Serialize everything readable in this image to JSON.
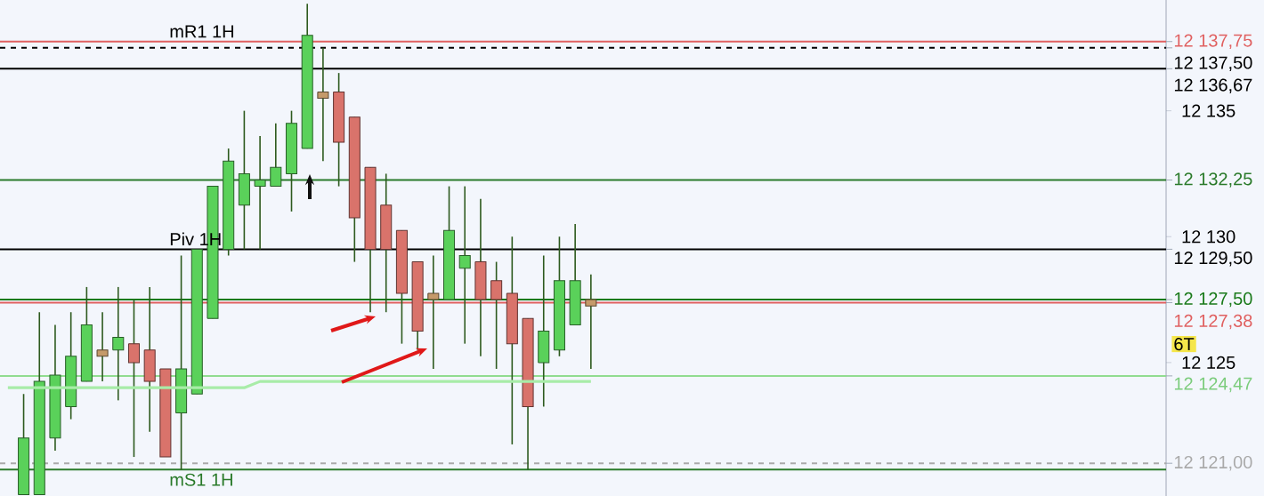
{
  "chart_data": {
    "type": "candlestick",
    "categories": [
      null,
      null,
      null,
      null,
      null,
      null,
      null,
      null,
      null,
      null,
      null,
      null,
      null,
      null,
      null,
      null,
      null,
      null,
      null,
      null,
      null,
      null,
      null,
      null,
      null,
      null,
      null,
      null,
      null,
      null,
      null,
      null,
      null,
      null,
      null,
      null,
      null,
      null,
      null,
      null,
      null,
      null,
      null,
      null,
      null,
      null,
      null,
      null,
      null,
      null,
      null,
      null,
      null,
      null,
      null,
      null,
      null,
      null,
      null,
      null,
      null,
      null,
      null,
      null,
      null,
      null,
      null,
      null,
      null,
      null,
      null,
      null,
      null,
      null
    ],
    "ohlc": [
      null,
      [
        12119.75,
        12123.75,
        12119.75,
        12122
      ],
      [
        12119.75,
        12127,
        12119.75,
        12124.25
      ],
      [
        12122,
        12126.5,
        12121.5,
        12124.5
      ],
      [
        12123.25,
        12127,
        12122.75,
        12125.25
      ],
      [
        12124.25,
        12128,
        12124.25,
        12126.5
      ],
      [
        12125.5,
        12127,
        12124.25,
        12125.25
      ],
      [
        12125.5,
        12128,
        12123.5,
        12126
      ],
      [
        12125.75,
        12127.5,
        12121.25,
        12125
      ],
      [
        12125.5,
        12128,
        12122.25,
        12124.25
      ],
      [
        12124.75,
        12124.75,
        12121.25,
        12121.25
      ],
      [
        12123,
        12129.25,
        12120.75,
        12124.75
      ],
      [
        12123.75,
        12129.5,
        12123.75,
        12129.5
      ],
      [
        12126.75,
        12132,
        12126.75,
        12132
      ],
      [
        12129.5,
        12133.5,
        12129.25,
        12133
      ],
      [
        12131.25,
        12135,
        12129.5,
        12132.5
      ],
      [
        12132,
        12134,
        12129.5,
        12132.25
      ],
      [
        12132,
        12134.5,
        12132,
        12132.75
      ],
      [
        12132.5,
        12135,
        12131,
        12134.5
      ],
      [
        12133.5,
        12139.25,
        12133.5,
        12138
      ],
      [
        12135.75,
        12137.5,
        12133,
        12135.5
      ],
      [
        12135.75,
        12136.5,
        12132,
        12133.75
      ],
      [
        12134.75,
        12134.75,
        12129,
        12130.75
      ],
      [
        12132.75,
        12132.75,
        12127,
        12129.5
      ],
      [
        12131.25,
        12132.5,
        12127,
        12129.5
      ],
      [
        12130.25,
        12130.25,
        12125.75,
        12127.75
      ],
      [
        12129,
        12129,
        12125.5,
        12126.25
      ],
      [
        12127.75,
        12129.25,
        12124.75,
        12127.5
      ],
      [
        12127.5,
        12132,
        12127.5,
        12130.25
      ],
      [
        12128.75,
        12132,
        12125.75,
        12129.25
      ],
      [
        12129,
        12131.5,
        12125.25,
        12127.5
      ],
      [
        12128.25,
        12129,
        12124.75,
        12127.5
      ],
      [
        12127.75,
        12130,
        12121.75,
        12125.75
      ],
      [
        12126.75,
        12126.75,
        12120.75,
        12123.25
      ],
      [
        12125,
        12129.25,
        12123.25,
        12126.25
      ],
      [
        12125.5,
        12130,
        12125.25,
        12128.25
      ],
      [
        12126.5,
        12130.5,
        12126.5,
        12128.25
      ],
      [
        12127.5,
        12128.5,
        12124.75,
        12127.25
      ],
      null,
      null,
      null,
      null,
      null,
      null,
      null,
      null,
      null,
      null,
      null,
      null,
      null,
      null,
      null,
      null,
      null,
      null,
      null,
      null,
      null,
      null,
      null,
      null,
      null,
      null,
      null,
      null,
      null,
      null,
      null,
      null,
      null,
      null,
      null,
      null
    ],
    "colors": [
      null,
      "#5ad15a",
      "#5ad15a",
      "#5ad15a",
      "#5ad15a",
      "#5ad15a",
      "#c59a6a",
      "#5ad15a",
      "#d9736b",
      "#d9736b",
      "#d9736b",
      "#5ad15a",
      "#5ad15a",
      "#5ad15a",
      "#5ad15a",
      "#5ad15a",
      "#5ad15a",
      "#5ad15a",
      "#5ad15a",
      "#5ad15a",
      "#c59a6a",
      "#d9736b",
      "#d9736b",
      "#d9736b",
      "#d9736b",
      "#d9736b",
      "#d9736b",
      "#c59a6a",
      "#5ad15a",
      "#5ad15a",
      "#d9736b",
      "#d9736b",
      "#d9736b",
      "#d9736b",
      "#5ad15a",
      "#5ad15a",
      "#5ad15a",
      "#c59a6a",
      null,
      null,
      null,
      null,
      null,
      null,
      null,
      null,
      null,
      null,
      null,
      null,
      null,
      null,
      null,
      null,
      null,
      null,
      null,
      null,
      null,
      null,
      null,
      null,
      null,
      null,
      null,
      null,
      null,
      null,
      null,
      null,
      null,
      null,
      null,
      null
    ],
    "series": [
      {
        "type": "line",
        "color": "#a8eca8",
        "values": [
          12124,
          12124,
          12124,
          12124,
          12124,
          12124,
          12124,
          12124,
          12124,
          12124,
          12124,
          12124,
          12124,
          12124,
          12124,
          12124,
          12124.25,
          12124.25,
          12124.25,
          12124.25,
          12124.25,
          12124.25,
          12124.25,
          12124.25,
          12124.25,
          12124.25,
          12124.25,
          12124.25,
          12124.25,
          12124.25,
          12124.25,
          12124.25,
          12124.25,
          12124.25,
          12124.25,
          12124.25,
          12124.25,
          12124.25,
          null,
          null,
          null,
          null,
          null,
          null,
          null,
          null,
          null,
          null,
          null,
          null,
          null,
          null,
          null,
          null,
          null,
          null,
          null,
          null,
          null,
          null,
          null,
          null,
          null,
          null,
          null,
          null,
          null,
          null,
          null,
          null,
          null,
          null,
          null,
          null
        ]
      }
    ],
    "ylim": [
      12119.7,
      12139.4
    ],
    "yticks": [
      {
        "value": 12135,
        "label": "12 135"
      },
      {
        "value": 12130,
        "label": "12 130"
      },
      {
        "value": 12125,
        "label": "12 125"
      }
    ],
    "tick_labels": "y",
    "ref_lines": [
      {
        "axis": "y",
        "value": 12137.75,
        "label": "12 137,75",
        "color": "#e06060"
      },
      {
        "axis": "y",
        "value": 12137.5,
        "label": "12 137,50",
        "color": "#000000",
        "line_style": "dashed"
      },
      {
        "axis": "y",
        "value": 12136.67,
        "label": "12 136,67",
        "color": "#000000"
      },
      {
        "axis": "y",
        "value": 12132.25,
        "label": "12 132,25",
        "color": "#2a7a2a"
      },
      {
        "axis": "y",
        "value": 12129.5,
        "label": "12 129,50",
        "color": "#000000"
      },
      {
        "axis": "y",
        "value": 12127.5,
        "label": "12 127,50",
        "color": "#1a7a1a"
      },
      {
        "axis": "y",
        "value": 12127.38,
        "label": "12 127,38",
        "color": "#e06060"
      },
      {
        "axis": "y",
        "value": 12124.47,
        "label": "12 124,47",
        "color": "#90dc90"
      },
      {
        "axis": "y",
        "value": 12121,
        "label": "12 121,00",
        "color": "#aaaaaa",
        "line_style": "dashed"
      },
      {
        "axis": "y",
        "value": 12120.75,
        "color": "#2a7a2a"
      }
    ],
    "annotations": [
      {
        "text": "mR1 1H",
        "y": 12137.75
      },
      {
        "text": "Piv 1H",
        "y": 12129.5
      },
      {
        "text": "mS1 1H",
        "y": 12120.75
      },
      "6T"
    ]
  }
}
